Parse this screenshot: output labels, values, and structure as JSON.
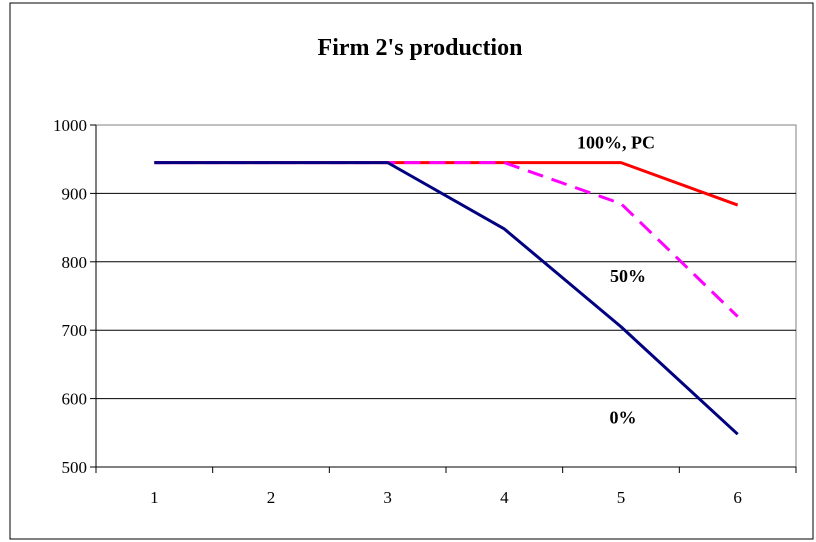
{
  "chart_data": {
    "type": "line",
    "title": "Firm 2's production",
    "xlabel": "",
    "ylabel": "",
    "categories": [
      "1",
      "2",
      "3",
      "4",
      "5",
      "6"
    ],
    "ylim": [
      500,
      1000
    ],
    "y_ticks": [
      500,
      600,
      700,
      800,
      900,
      1000
    ],
    "grid": "horizontal",
    "legend": "none",
    "series": [
      {
        "name": "100%, PC",
        "values": [
          945,
          945,
          945,
          945,
          945,
          883
        ],
        "color": "#ff0000",
        "dash": "solid"
      },
      {
        "name": "50%",
        "values": [
          945,
          945,
          945,
          945,
          885,
          720
        ],
        "color": "#ff00ff",
        "dash": "dashed"
      },
      {
        "name": "0%",
        "values": [
          945,
          945,
          945,
          848,
          705,
          548
        ],
        "color": "#000080",
        "dash": "solid"
      }
    ],
    "annotations": [
      "100%, PC",
      "50%",
      "0%"
    ]
  }
}
